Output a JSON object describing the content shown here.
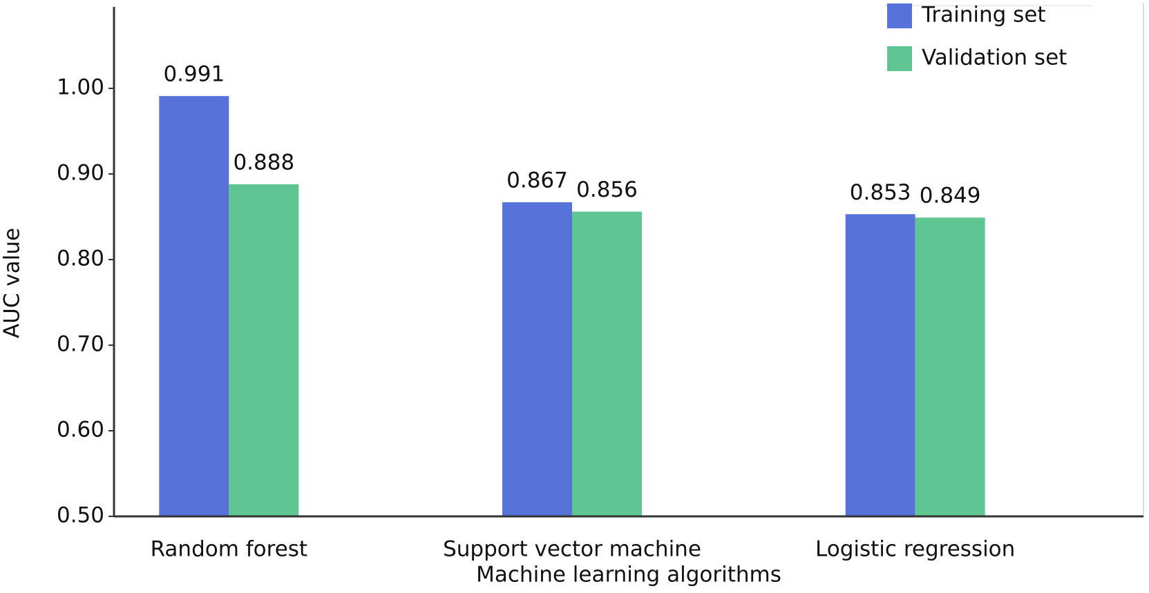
{
  "chart_data": {
    "type": "bar",
    "x_label": "Machine learning algorithms",
    "y_label": "AUC value",
    "categories": [
      "Random forest",
      "Support vector machine",
      "Logistic regression"
    ],
    "series": [
      {
        "name": "Training set",
        "color": "#5772d8",
        "values": [
          0.991,
          0.867,
          0.853
        ]
      },
      {
        "name": "Validation set",
        "color": "#5fc693",
        "values": [
          0.888,
          0.856,
          0.849
        ]
      }
    ],
    "ylim": [
      0.5,
      1.1
    ],
    "yticks": [
      {
        "value": 0.5,
        "label": "0.50"
      },
      {
        "value": 0.6,
        "label": "0.60"
      },
      {
        "value": 0.7,
        "label": "0.70"
      },
      {
        "value": 0.8,
        "label": "0.80"
      },
      {
        "value": 0.9,
        "label": "0.90"
      },
      {
        "value": 1.0,
        "label": "1.00"
      }
    ],
    "legend": "upper right"
  }
}
